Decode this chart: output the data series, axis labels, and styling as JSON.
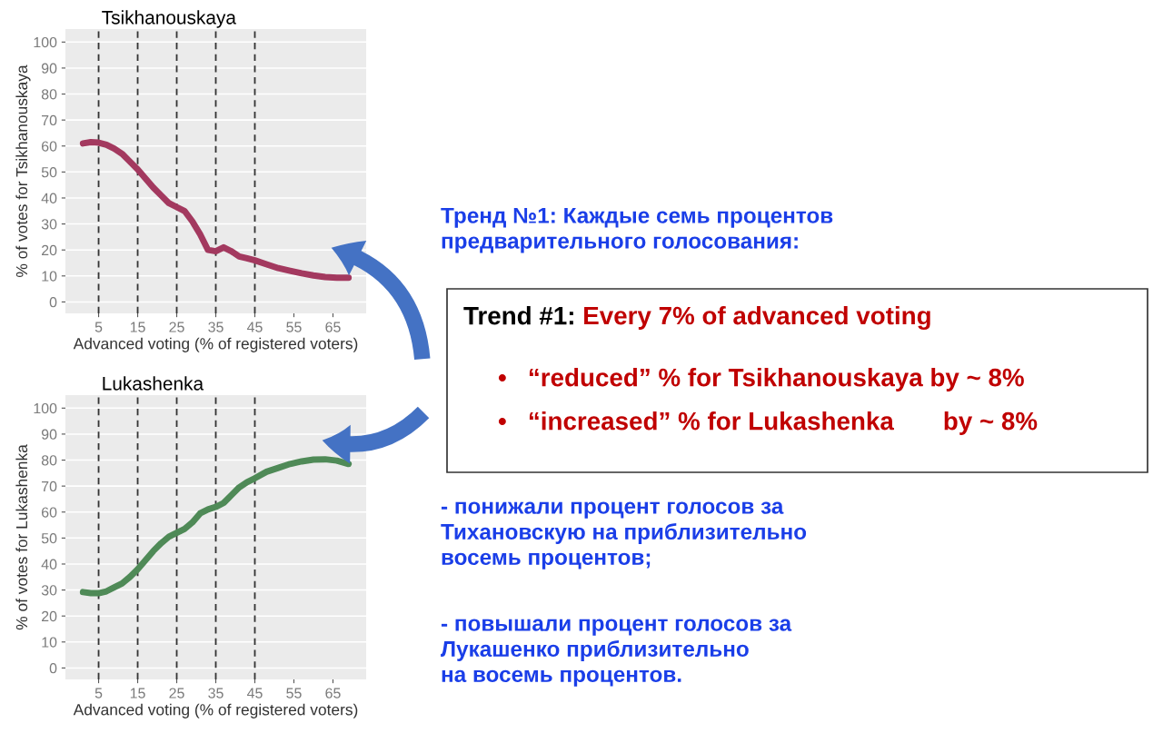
{
  "chart_data": [
    {
      "type": "line",
      "title": "Tsikhanouskaya",
      "xlabel": "Advanced voting (% of registered voters)",
      "ylabel": "% of votes for Tsikhanouskaya",
      "xlim": [
        -3.5,
        73.5
      ],
      "ylim": [
        -4.4,
        105
      ],
      "xticks": [
        5,
        15,
        25,
        35,
        45,
        55,
        65
      ],
      "yticks": [
        0,
        10,
        20,
        30,
        40,
        50,
        60,
        70,
        80,
        90,
        100
      ],
      "grid": "y",
      "line_style": "solid",
      "ref_lines": [
        {
          "axis": "x",
          "value": 5,
          "line_style": "dashed"
        },
        {
          "axis": "x",
          "value": 15,
          "line_style": "dashed"
        },
        {
          "axis": "x",
          "value": 25,
          "line_style": "dashed"
        },
        {
          "axis": "x",
          "value": 35,
          "line_style": "dashed"
        },
        {
          "axis": "x",
          "value": 45,
          "line_style": "dashed"
        }
      ],
      "series": [
        {
          "color": "#a3395f",
          "x": [
            1,
            3,
            5,
            7,
            9,
            11,
            13,
            15,
            17,
            19,
            21,
            23,
            25,
            27,
            29,
            31,
            33,
            35,
            37,
            39,
            41,
            43,
            45,
            48,
            51,
            54,
            57,
            60,
            63,
            66,
            69
          ],
          "values": [
            61,
            61.5,
            61.3,
            60.5,
            59,
            57,
            54,
            51,
            47.5,
            44,
            41,
            38,
            36.5,
            35,
            31,
            26,
            20,
            19.5,
            21,
            19.5,
            17.5,
            16.8,
            16,
            14.5,
            13,
            12,
            11,
            10.2,
            9.6,
            9.3,
            9.3
          ]
        }
      ]
    },
    {
      "type": "line",
      "title": "Lukashenka",
      "xlabel": "Advanced voting (% of registered voters)",
      "ylabel": "% of votes for Lukashenka",
      "xlim": [
        -3.5,
        73.5
      ],
      "ylim": [
        -4.4,
        105
      ],
      "xticks": [
        5,
        15,
        25,
        35,
        45,
        55,
        65
      ],
      "yticks": [
        0,
        10,
        20,
        30,
        40,
        50,
        60,
        70,
        80,
        90,
        100
      ],
      "grid": "y",
      "line_style": "solid",
      "ref_lines": [
        {
          "axis": "x",
          "value": 5,
          "line_style": "dashed"
        },
        {
          "axis": "x",
          "value": 15,
          "line_style": "dashed"
        },
        {
          "axis": "x",
          "value": 25,
          "line_style": "dashed"
        },
        {
          "axis": "x",
          "value": 35,
          "line_style": "dashed"
        },
        {
          "axis": "x",
          "value": 45,
          "line_style": "dashed"
        }
      ],
      "series": [
        {
          "color": "#4f8a57",
          "x": [
            1,
            3,
            5,
            7,
            9,
            11,
            13,
            15,
            17,
            19,
            21,
            23,
            25,
            27,
            29,
            31,
            33,
            35,
            37,
            39,
            41,
            43,
            45,
            48,
            51,
            54,
            57,
            60,
            63,
            66,
            69
          ],
          "values": [
            29.2,
            28.8,
            28.8,
            29.5,
            31,
            32.5,
            35,
            38,
            41.5,
            45,
            48,
            50.5,
            52,
            53.5,
            56,
            59.5,
            61,
            62,
            63.5,
            66.5,
            69.5,
            71.5,
            73,
            75.5,
            77,
            78.5,
            79.5,
            80.2,
            80.3,
            79.8,
            78.5
          ]
        }
      ]
    },
    {
      "type": "other",
      "annotations": [
        "Тренд №1: Каждые семь процентов\nпредварительного голосования:",
        "Trend #1:",
        "Every 7% of advanced voting",
        "•   “reduced” % for Tsikhanouskaya by ~ 8%",
        "•   “increased” % for Lukashenka       by ~ 8%",
        "- понижали процент голосов за\nТихановскую на приблизительно\nвосемь процентов;",
        "- повышали процент голосов за\nЛукашенко приблизительно\nна восемь процентов."
      ]
    }
  ]
}
